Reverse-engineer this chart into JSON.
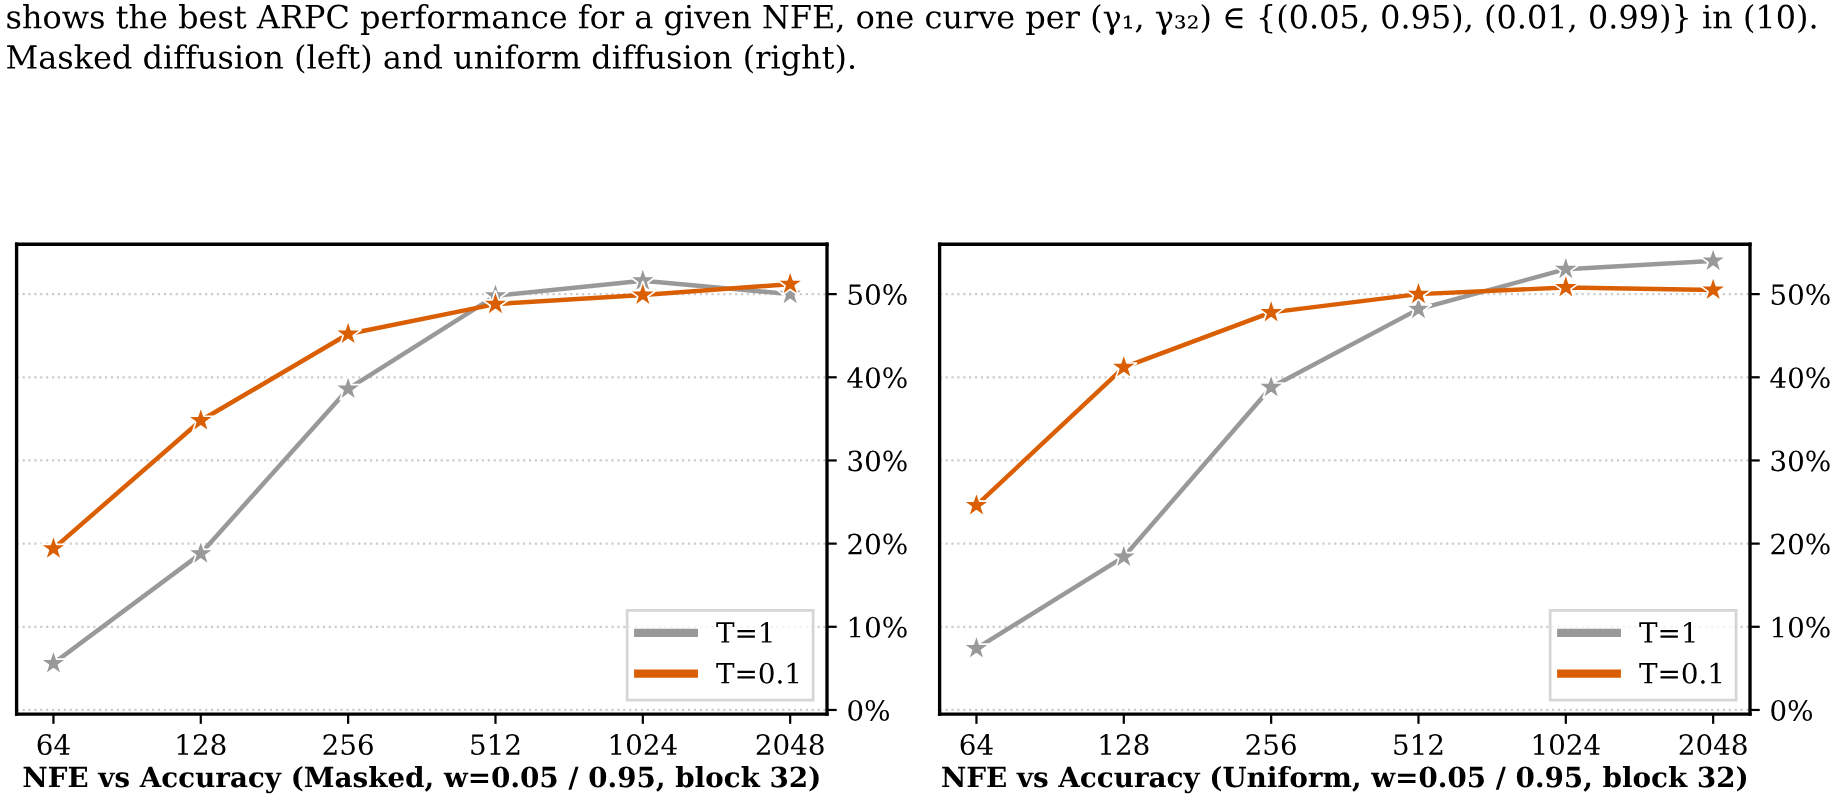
{
  "chart_data": [
    {
      "type": "line",
      "xlabel": "NFE vs Accuracy (Masked, w=0.05 / 0.95, block 32)",
      "categories": [
        "64",
        "128",
        "256",
        "512",
        "1024",
        "2048"
      ],
      "series": [
        {
          "name": "T=1",
          "color": "#999999",
          "values": [
            5.6,
            18.8,
            38.6,
            49.8,
            51.6,
            50.0
          ]
        },
        {
          "name": "T=0.1",
          "color": "#d95f02",
          "values": [
            19.4,
            34.8,
            45.2,
            48.8,
            49.9,
            51.2
          ]
        }
      ],
      "ylim": [
        -0.5,
        56
      ],
      "yticks": [
        {
          "value": 0,
          "label": "0%"
        },
        {
          "value": 10,
          "label": "10%"
        },
        {
          "value": 20,
          "label": "20%"
        },
        {
          "value": 30,
          "label": "30%"
        },
        {
          "value": 40,
          "label": "40%"
        },
        {
          "value": 50,
          "label": "50%"
        }
      ],
      "grid": "y",
      "legend": "bottom right",
      "marker": "star",
      "line_style": "solid",
      "annotations": [
        "shows the best ARPC performance for a given NFE, one curve per (γ₁, γ₃₂) ∈ {(0.05, 0.95), (0.01, 0.99)} in (10).",
        "Masked diffusion (left) and uniform diffusion (right)."
      ]
    },
    {
      "type": "line",
      "xlabel": "NFE vs Accuracy (Uniform, w=0.05 / 0.95, block 32)",
      "categories": [
        "64",
        "128",
        "256",
        "512",
        "1024",
        "2048"
      ],
      "series": [
        {
          "name": "T=1",
          "color": "#999999",
          "values": [
            7.4,
            18.4,
            38.8,
            48.2,
            53.0,
            54.0
          ]
        },
        {
          "name": "T=0.1",
          "color": "#d95f02",
          "values": [
            24.6,
            41.2,
            47.8,
            50.0,
            50.8,
            50.5
          ]
        }
      ],
      "ylim": [
        -0.5,
        56
      ],
      "yticks": [
        {
          "value": 0,
          "label": "0%"
        },
        {
          "value": 10,
          "label": "10%"
        },
        {
          "value": 20,
          "label": "20%"
        },
        {
          "value": 30,
          "label": "30%"
        },
        {
          "value": 40,
          "label": "40%"
        },
        {
          "value": 50,
          "label": "50%"
        }
      ],
      "grid": "y",
      "legend": "bottom right",
      "marker": "star",
      "line_style": "solid"
    }
  ]
}
